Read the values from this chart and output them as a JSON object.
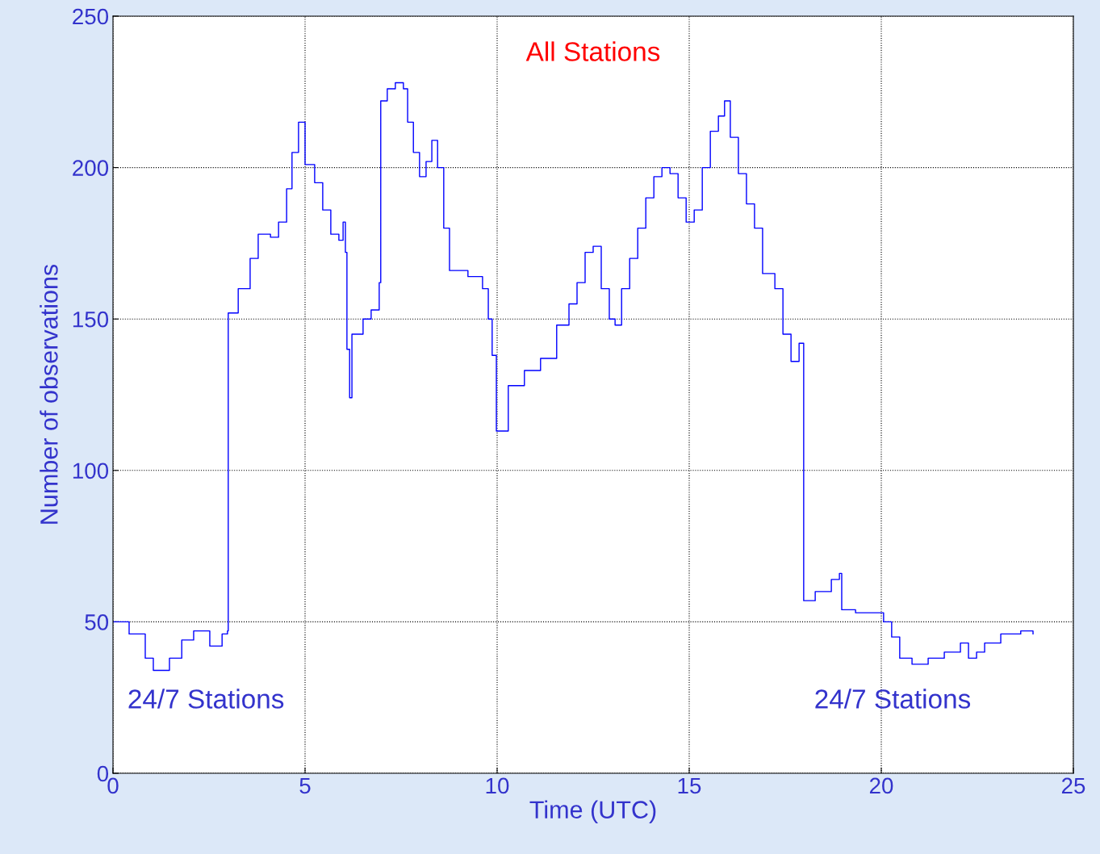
{
  "chart_data": {
    "type": "step",
    "xlabel": "Time (UTC)",
    "ylabel": "Number of observations",
    "xlim": [
      0,
      25
    ],
    "ylim": [
      0,
      250
    ],
    "xticks": [
      0,
      5,
      10,
      15,
      20,
      25
    ],
    "yticks": [
      0,
      50,
      100,
      150,
      200,
      250
    ],
    "grid": true,
    "line_style": "solid",
    "marker": "none",
    "annotations": [
      "All Stations",
      "24/7 Stations",
      "24/7 Stations"
    ],
    "series": [
      {
        "color": "#0000ff",
        "x": [
          0,
          0.42,
          0.84,
          1.05,
          1.47,
          1.79,
          2.1,
          2.52,
          2.84,
          2.98,
          3.0,
          3.26,
          3.57,
          3.78,
          4.1,
          4.31,
          4.52,
          4.66,
          4.83,
          5.0,
          5.25,
          5.46,
          5.67,
          5.88,
          5.99,
          6.05,
          6.09,
          6.16,
          6.22,
          6.51,
          6.72,
          6.93,
          6.97,
          7.14,
          7.35,
          7.56,
          7.67,
          7.82,
          7.98,
          8.15,
          8.3,
          8.45,
          8.61,
          8.76,
          9.24,
          9.62,
          9.77,
          9.87,
          9.98,
          10.29,
          10.71,
          11.13,
          11.55,
          11.87,
          12.08,
          12.29,
          12.5,
          12.71,
          12.92,
          13.07,
          13.24,
          13.45,
          13.66,
          13.87,
          14.08,
          14.29,
          14.5,
          14.71,
          14.92,
          15.13,
          15.34,
          15.55,
          15.76,
          15.92,
          16.07,
          16.28,
          16.49,
          16.7,
          16.91,
          17.23,
          17.44,
          17.65,
          17.86,
          17.96,
          17.98,
          18.28,
          18.7,
          18.91,
          18.97,
          19.33,
          19.75,
          20.06,
          20.27,
          20.48,
          20.8,
          21.22,
          21.64,
          22.06,
          22.27,
          22.48,
          22.69,
          23.11,
          23.63,
          23.95
        ],
        "values": [
          50,
          46,
          38,
          34,
          38,
          44,
          47,
          42,
          46,
          47,
          152,
          160,
          170,
          178,
          177,
          182,
          193,
          205,
          215,
          201,
          195,
          186,
          178,
          176,
          182,
          172,
          140,
          124,
          145,
          150,
          153,
          162,
          222,
          226,
          228,
          226,
          215,
          205,
          197,
          202,
          209,
          200,
          180,
          166,
          164,
          160,
          150,
          138,
          113,
          128,
          133,
          137,
          148,
          155,
          162,
          172,
          174,
          160,
          150,
          148,
          160,
          170,
          180,
          190,
          197,
          200,
          198,
          190,
          182,
          186,
          200,
          212,
          217,
          222,
          210,
          198,
          188,
          180,
          165,
          160,
          145,
          136,
          142,
          142,
          57,
          60,
          64,
          66,
          54,
          53,
          53,
          50,
          45,
          38,
          36,
          38,
          40,
          43,
          38,
          40,
          43,
          46,
          47,
          46
        ]
      }
    ]
  }
}
